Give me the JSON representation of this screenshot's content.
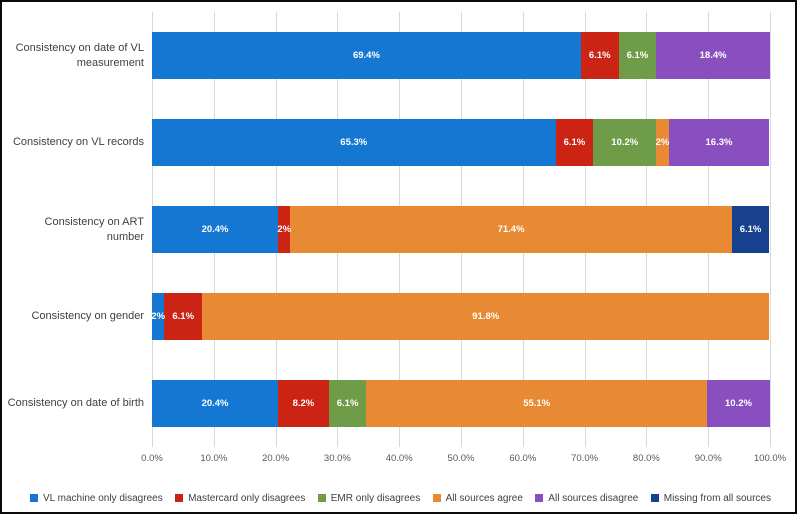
{
  "chart_data": {
    "type": "bar",
    "orientation": "horizontal-stacked",
    "title": "",
    "xlabel": "",
    "ylabel": "",
    "xlim": [
      0,
      100
    ],
    "grid": true,
    "legend_position": "bottom",
    "categories": [
      "Consistency on date of VL measurement",
      "Consistency on VL records",
      "Consistency on ART number",
      "Consistency on gender",
      "Consistency on date of birth"
    ],
    "series": [
      {
        "name": "VL machine only disagrees",
        "color": "#1478d2",
        "values": [
          69.4,
          65.3,
          20.4,
          2,
          20.4
        ],
        "labels": [
          "69.4%",
          "65.3%",
          "20.4%",
          "2%",
          "20.4%"
        ]
      },
      {
        "name": "Mastercard only disagrees",
        "color": "#cb2415",
        "values": [
          6.1,
          6.1,
          2,
          6.1,
          8.2
        ],
        "labels": [
          "6.1%",
          "6.1%",
          "2%",
          "6.1%",
          "8.2%"
        ]
      },
      {
        "name": "EMR only disagrees",
        "color": "#6f9c49",
        "values": [
          6.1,
          10.2,
          0,
          0,
          6.1
        ],
        "labels": [
          "6.1%",
          "10.2%",
          null,
          null,
          "6.1%"
        ]
      },
      {
        "name": "All sources agree",
        "color": "#e78a33",
        "values": [
          0,
          2,
          71.4,
          91.8,
          55.1
        ],
        "labels": [
          null,
          "2%",
          "71.4%",
          "91.8%",
          "55.1%"
        ]
      },
      {
        "name": "All sources disagree",
        "color": "#8a4fbe",
        "values": [
          18.4,
          16.3,
          0,
          0,
          10.2
        ],
        "labels": [
          "18.4%",
          "16.3%",
          null,
          null,
          "10.2%"
        ]
      },
      {
        "name": "Missing from all sources",
        "color": "#17418c",
        "values": [
          0,
          0,
          6.1,
          0,
          0
        ],
        "labels": [
          null,
          null,
          "6.1%",
          null,
          null
        ]
      }
    ],
    "x_ticks": [
      "0.0%",
      "10.0%",
      "20.0%",
      "30.0%",
      "40.0%",
      "50.0%",
      "60.0%",
      "70.0%",
      "80.0%",
      "90.0%",
      "100.0%"
    ]
  }
}
